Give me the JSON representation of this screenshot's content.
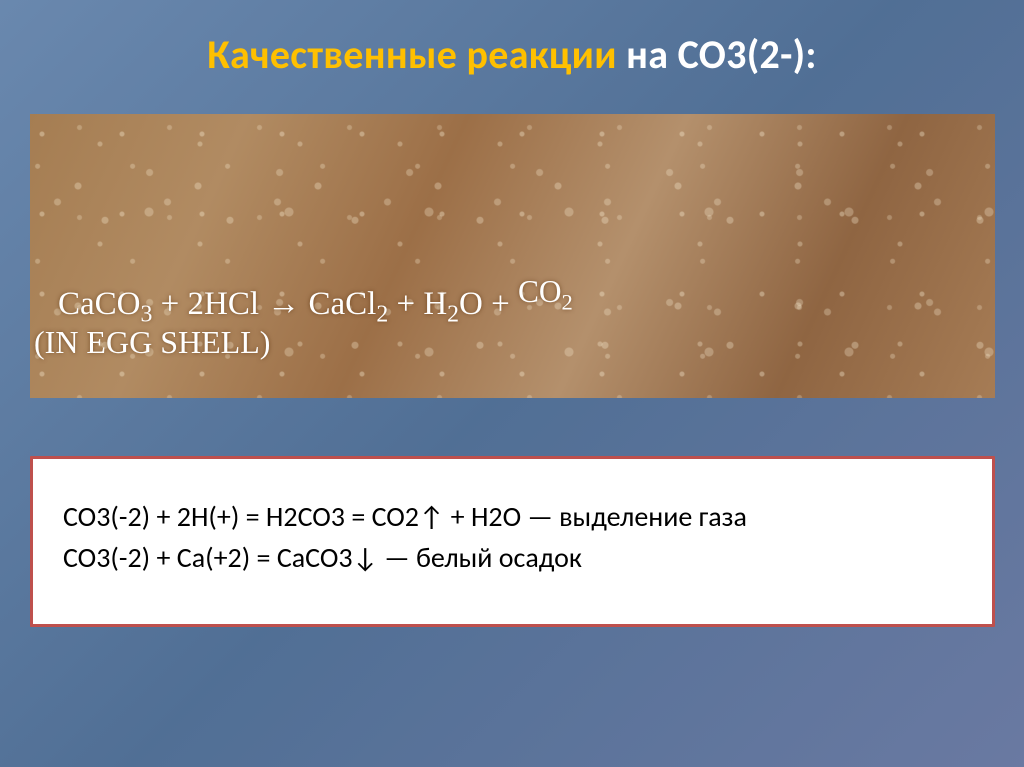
{
  "slide": {
    "title_highlight": "Качественные реакции",
    "title_rest": " на CO3(2-):",
    "photo": {
      "equation_part_1": "CaCO",
      "equation_sub_1": "3",
      "equation_part_2": "  +  2HCl →  CaCl",
      "equation_sub_2": "2",
      "equation_part_3": "  +  H",
      "equation_sub_3": "2",
      "equation_part_4": "O  +  ",
      "equation_gas": "CO",
      "equation_gas_sub": "2",
      "caption": "(IN EGG SHELL)",
      "background_tone": "#a57d52",
      "text_color": "#ffffff"
    },
    "panel": {
      "line1": "CO3(-2) + 2H(+) = H2CO3 = CO2↑ + H2O — выделение газа",
      "line2": "CO3(-2) + Ca(+2) = CaCO3↓ — белый осадок",
      "border_color": "#be504d",
      "background_color": "#ffffff",
      "text_color": "#000000",
      "font_size_pt": 21
    }
  },
  "style": {
    "title_highlight_color": "#ffc000",
    "title_rest_color": "#ffffff",
    "title_fontsize_pt": 30,
    "slide_background_primary": "#5b7a9e"
  }
}
